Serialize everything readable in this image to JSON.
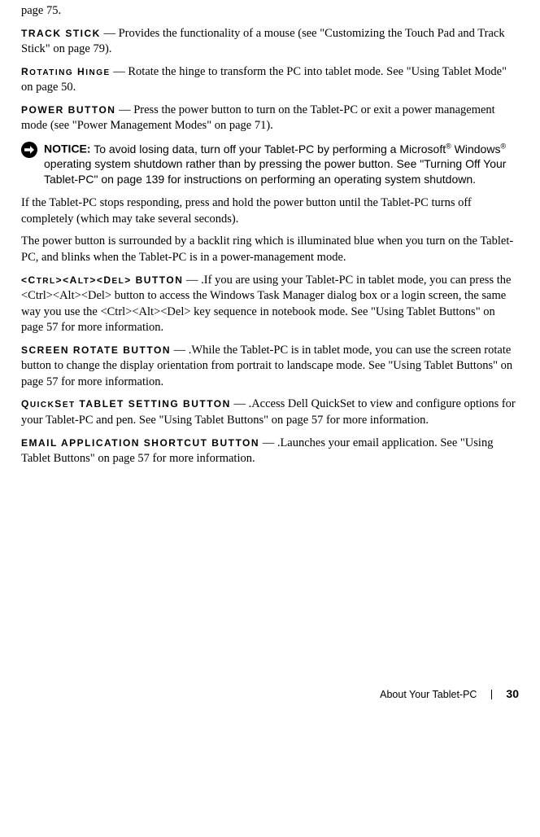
{
  "lead_fragment": "page 75.",
  "sections": [
    {
      "term_markup": "<span class=\"term\">TRACK STICK</span> <span class=\"dash\">—</span> ",
      "body": "Provides the functionality of a mouse (see \"Customizing the Touch Pad and Track Stick\" on page 79)."
    },
    {
      "term_markup": "<span class=\"term\">R<span style=\"font-size:10px\">OTATING</span> H<span style=\"font-size:10px\">INGE</span></span> <span class=\"dash\">—</span> ",
      "body": "Rotate the hinge to transform the PC into tablet mode. See \"Using Tablet Mode\" on page 50."
    },
    {
      "term_markup": "<span class=\"term\">POWER BUTTON</span> <span class=\"dash\">—</span> ",
      "body": "Press the power button to turn on the Tablet-PC or exit a power management mode (see \"Power Management Modes\" on page 71)."
    }
  ],
  "notice": {
    "label": "NOTICE:",
    "text_html": "To avoid losing data, turn off your Tablet-PC by performing a Microsoft<span class=\"sup-reg\">®</span> Windows<span class=\"sup-reg\">®</span> operating system shutdown rather than by pressing the power button. See \"Turning Off Your Tablet-PC\" on page 139 for instructions on performing an operating system shutdown.",
    "icon": {
      "circle_fill": "#000000",
      "arrow_fill": "#ffffff"
    }
  },
  "after_notice": [
    "If the Tablet-PC stops responding, press and hold the power button until the Tablet-PC turns off completely (which may take several seconds).",
    "The power button is surrounded by a backlit ring which is illuminated blue when you turn on the Tablet-PC, and blinks when the Tablet-PC is in a power-management mode."
  ],
  "sections2": [
    {
      "term_markup": "<span class=\"term\">&lt;C<span style=\"font-size:10px\">TRL</span>&gt;&lt;A<span style=\"font-size:10px\">LT</span>&gt;&lt;D<span style=\"font-size:10px\">EL</span>&gt; BUTTON</span> <span class=\"dash\">—</span> ",
      "body": ".If you are using your Tablet-PC in tablet mode, you can press the &lt;Ctrl&gt;&lt;Alt&gt;&lt;Del&gt; button to access the Windows Task Manager dialog box or a login screen, the same way you use the &lt;Ctrl&gt;&lt;Alt&gt;&lt;Del&gt; key sequence in notebook mode. See \"Using Tablet Buttons\" on page 57 for more information."
    },
    {
      "term_markup": "<span class=\"term\">SCREEN ROTATE BUTTON</span> <span class=\"dash\">—</span> ",
      "body": ".While the Tablet-PC is in tablet mode, you can use the screen rotate button to change the display orientation from portrait to landscape mode. See \"Using Tablet Buttons\" on page 57 for more information."
    },
    {
      "term_markup": "<span class=\"term\">Q<span style=\"font-size:10px\">UICK</span>S<span style=\"font-size:10px\">ET</span> TABLET SETTING BUTTON</span> <span class=\"dash\">—</span> ",
      "body": ".Access Dell QuickSet to view and configure options for your Tablet-PC and pen. See \"Using Tablet Buttons\" on page 57 for more information."
    },
    {
      "term_markup": "<span class=\"term\">EMAIL APPLICATION SHORTCUT BUTTON</span> <span class=\"dash\">—</span> ",
      "body": ".Launches your email application. See \"Using Tablet Buttons\" on page 57 for more information."
    }
  ],
  "footer": {
    "section_title": "About Your Tablet-PC",
    "page_number": "30"
  }
}
